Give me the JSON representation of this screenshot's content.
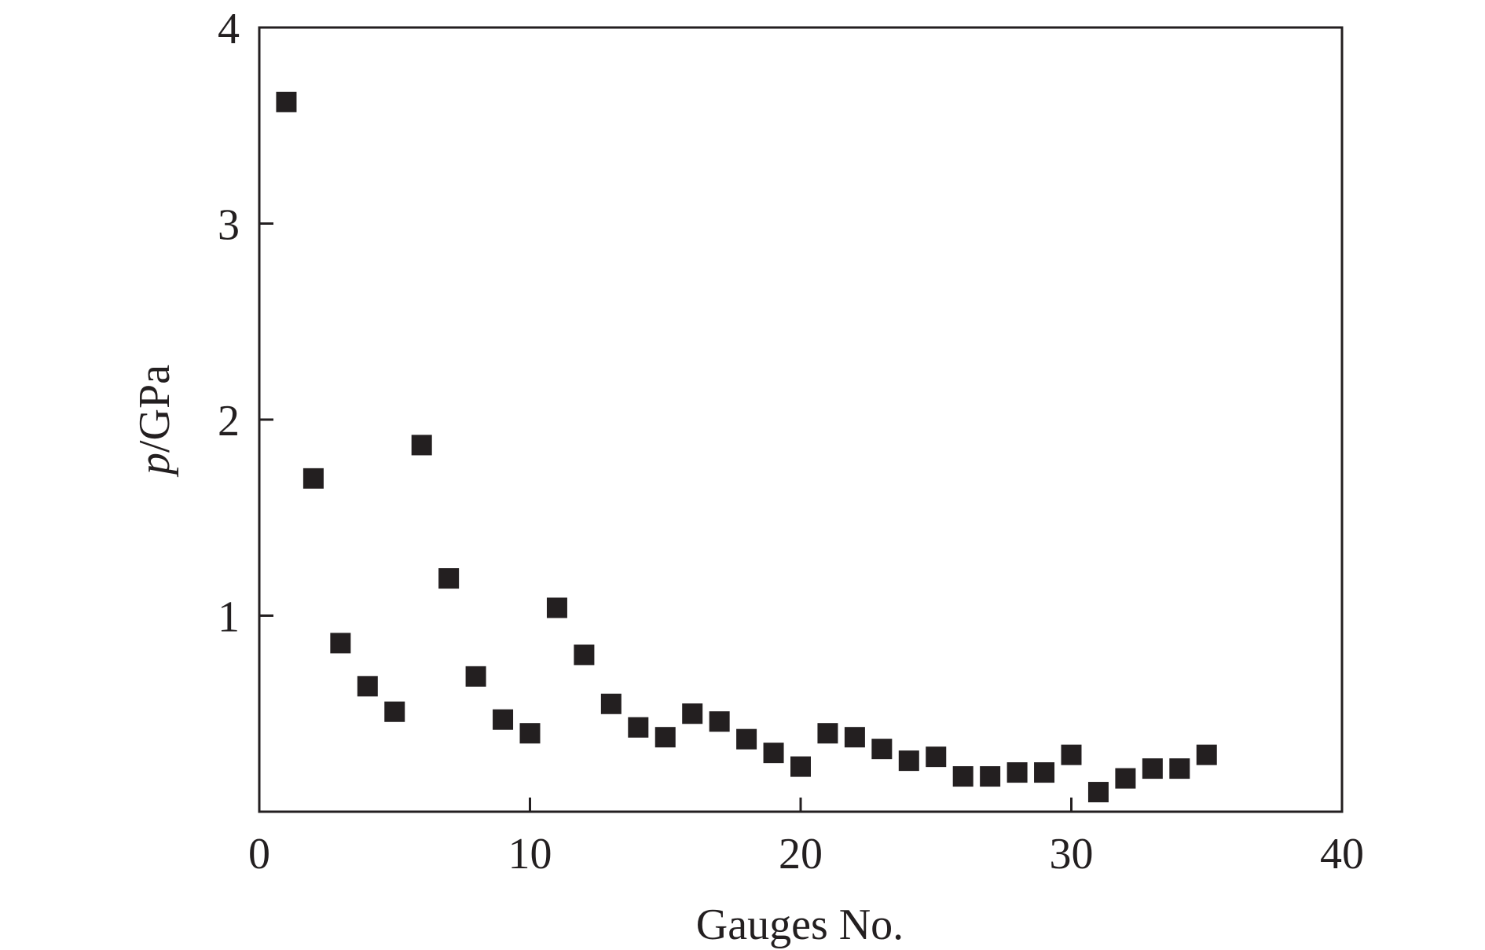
{
  "chart_data": {
    "type": "scatter",
    "title": "",
    "xlabel": "Gauges No.",
    "ylabel_italic": "p",
    "ylabel_unit": "/GPa",
    "xlim": [
      0,
      40
    ],
    "ylim": [
      0,
      4
    ],
    "xticks": [
      0,
      10,
      20,
      30,
      40
    ],
    "yticks": [
      1,
      2,
      3,
      4
    ],
    "grid": false,
    "legend": "none",
    "marker": "square",
    "marker_color": "#231f20",
    "series": [
      {
        "x": [
          1,
          2,
          3,
          4,
          5,
          6,
          7,
          8,
          9,
          10,
          11,
          12,
          13,
          14,
          15,
          16,
          17,
          18,
          19,
          20,
          21,
          22,
          23,
          24,
          25,
          26,
          27,
          28,
          29,
          30,
          31,
          32,
          33,
          34,
          35
        ],
        "y": [
          3.62,
          1.7,
          0.86,
          0.64,
          0.51,
          1.87,
          1.19,
          0.69,
          0.47,
          0.4,
          1.04,
          0.8,
          0.55,
          0.43,
          0.38,
          0.5,
          0.46,
          0.37,
          0.3,
          0.23,
          0.4,
          0.38,
          0.32,
          0.26,
          0.28,
          0.18,
          0.18,
          0.2,
          0.2,
          0.29,
          0.1,
          0.17,
          0.22,
          0.22,
          0.29
        ]
      }
    ]
  }
}
